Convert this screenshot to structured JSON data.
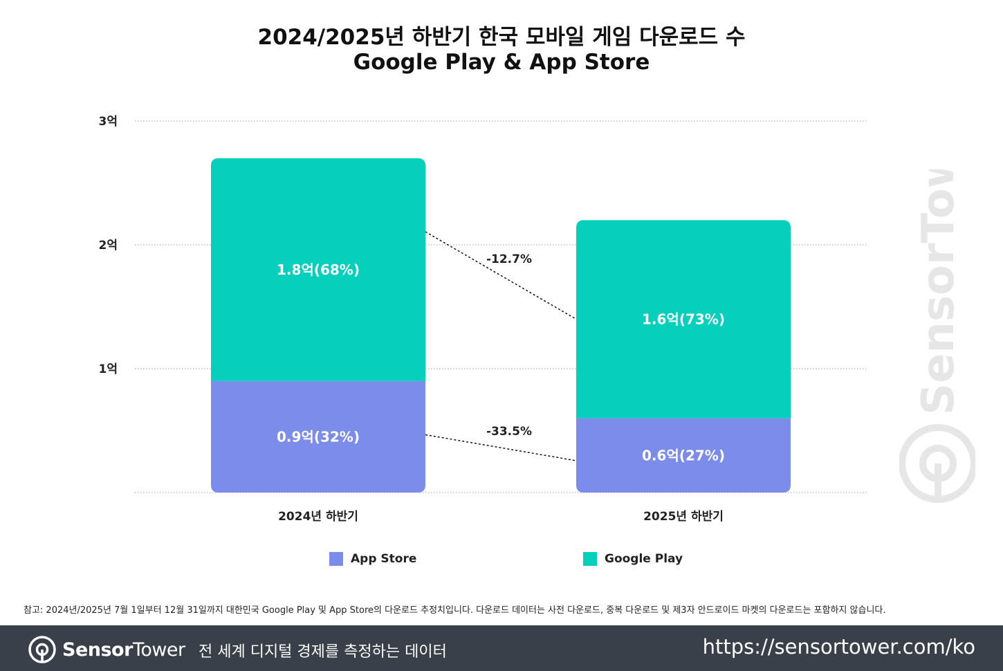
{
  "title_line1": "2024/2025년 하반기 한국 모바일 게임 다운로드 수",
  "title_line2": "Google Play & App Store",
  "chart_data": {
    "type": "bar",
    "stacked": true,
    "unit": "억",
    "categories": [
      "2024년 하반기",
      "2025년 하반기"
    ],
    "y_ticks": [
      {
        "value": 0,
        "label": ""
      },
      {
        "value": 1,
        "label": "1억"
      },
      {
        "value": 2,
        "label": "2억"
      },
      {
        "value": 3,
        "label": "3억"
      }
    ],
    "ylim": [
      0,
      3
    ],
    "grid": true,
    "legend_position": "bottom",
    "series": [
      {
        "name": "App Store",
        "color": "#7b8ceb",
        "values": [
          0.9,
          0.6
        ],
        "labels": [
          "0.9억(32%)",
          "0.6억(27%)"
        ]
      },
      {
        "name": "Google Play",
        "color": "#06d0bb",
        "values": [
          1.8,
          1.6
        ],
        "labels": [
          "1.8억(68%)",
          "1.6억(73%)"
        ]
      }
    ],
    "changes": [
      {
        "series": "App Store",
        "label": "-33.5%"
      },
      {
        "series": "Google Play",
        "label": "-12.7%"
      }
    ]
  },
  "legend": {
    "app_store": "App Store",
    "google_play": "Google Play"
  },
  "note": "참고: 2024년/2025년 7월 1일부터 12월 31일까지 대한민국 Google Play 및 App Store의 다운로드 추정치입니다. 다운로드 데이터는 사전 다운로드, 중복 다운로드 및 제3자 안드로이드 마켓의 다운로드는 포함하지 않습니다.",
  "footer": {
    "brand_bold": "Sensor",
    "brand_thin": "Tower",
    "tagline": "전 세계 디지털 경제를 측정하는 데이터",
    "url": "https://sensortower.com/ko"
  },
  "watermark_text": "SensorTower",
  "colors": {
    "app_store": "#7b8ceb",
    "google_play": "#06d0bb",
    "footer_bg": "#394049"
  }
}
